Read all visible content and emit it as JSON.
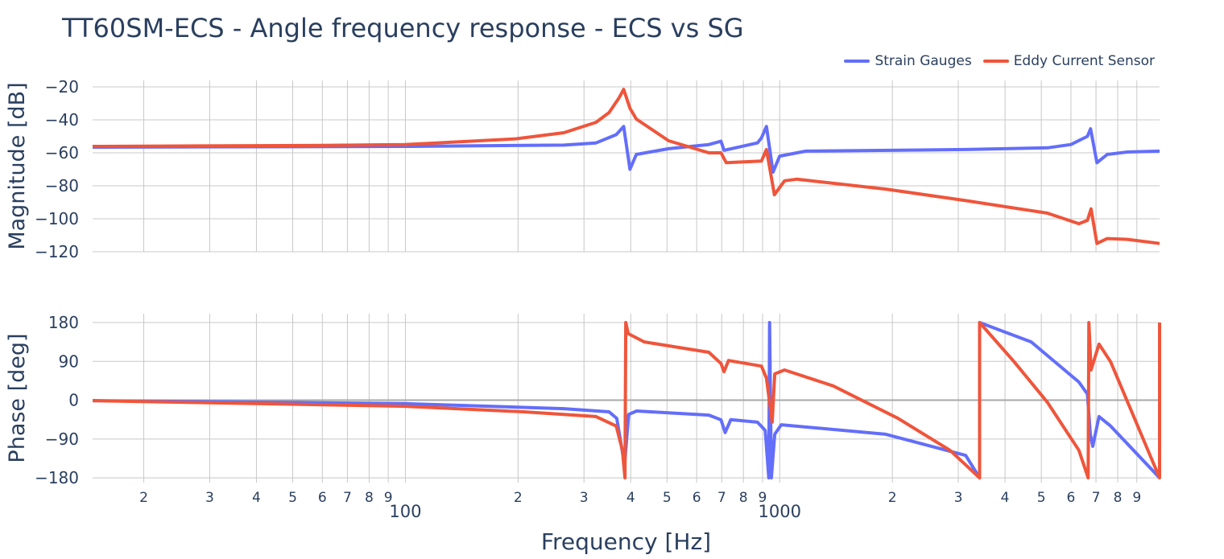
{
  "chart_data": [
    {
      "type": "line",
      "title": "TT60SM-ECS - Angle frequency response - ECS vs SG",
      "xlabel": "",
      "ylabel": "Magnitude [dB]",
      "xscale": "log",
      "xlim": [
        14.6,
        10350
      ],
      "ylim": [
        -120,
        -16.1
      ],
      "yticks": [
        -20,
        -40,
        -60,
        -80,
        -100,
        -120
      ],
      "ytick_labels": [
        "−20",
        "−40",
        "−60",
        "−80",
        "−100",
        "−120"
      ],
      "grid": true,
      "series": [
        {
          "name": "Strain Gauges",
          "color": "#636efa",
          "points": [
            [
              14.6,
              -56.6
            ],
            [
              100,
              -56.1
            ],
            [
              265,
              -55.3
            ],
            [
              323,
              -54
            ],
            [
              366,
              -49
            ],
            [
              383,
              -44
            ],
            [
              398,
              -70
            ],
            [
              414,
              -61
            ],
            [
              505,
              -57.5
            ],
            [
              647,
              -55
            ],
            [
              697,
              -53
            ],
            [
              710,
              -58.5
            ],
            [
              872,
              -54
            ],
            [
              894,
              -51
            ],
            [
              922,
              -44
            ],
            [
              960,
              -71.7
            ],
            [
              1000,
              -62
            ],
            [
              1175,
              -59
            ],
            [
              3140,
              -58
            ],
            [
              5190,
              -57
            ],
            [
              6000,
              -55
            ],
            [
              6640,
              -50
            ],
            [
              6770,
              -45.4
            ],
            [
              7040,
              -66
            ],
            [
              7500,
              -61
            ],
            [
              8500,
              -59.5
            ],
            [
              10350,
              -59
            ]
          ]
        },
        {
          "name": "Eddy Current Sensor",
          "color": "#ef553b",
          "points": [
            [
              14.6,
              -56.1
            ],
            [
              60,
              -55.5
            ],
            [
              100,
              -55
            ],
            [
              197,
              -51.5
            ],
            [
              265,
              -47.8
            ],
            [
              323,
              -41.5
            ],
            [
              350,
              -35.6
            ],
            [
              372,
              -26.8
            ],
            [
              383,
              -21.5
            ],
            [
              398,
              -33
            ],
            [
              414,
              -39.5
            ],
            [
              505,
              -52.7
            ],
            [
              647,
              -60
            ],
            [
              697,
              -60
            ],
            [
              720,
              -66
            ],
            [
              894,
              -65
            ],
            [
              922,
              -58
            ],
            [
              968,
              -85.4
            ],
            [
              1030,
              -77
            ],
            [
              1110,
              -76
            ],
            [
              1920,
              -82
            ],
            [
              3140,
              -89
            ],
            [
              5190,
              -96.6
            ],
            [
              6300,
              -103
            ],
            [
              6640,
              -101
            ],
            [
              6790,
              -94
            ],
            [
              7040,
              -115
            ],
            [
              7500,
              -112
            ],
            [
              8500,
              -112.5
            ],
            [
              10350,
              -115
            ]
          ]
        }
      ]
    },
    {
      "type": "line",
      "xlabel": "Frequency [Hz]",
      "ylabel": "Phase [deg]",
      "xscale": "log",
      "xlim": [
        14.6,
        10350
      ],
      "ylim": [
        -191,
        200.5
      ],
      "yticks": [
        180,
        90,
        0,
        -90,
        -180
      ],
      "ytick_labels": [
        "180",
        "90",
        "0",
        "−90",
        "−180"
      ],
      "xtick_minor_labels": [
        "2",
        "3",
        "4",
        "5",
        "6",
        "7",
        "8",
        "9",
        "2",
        "3",
        "4",
        "5",
        "6",
        "7",
        "8",
        "9",
        "2",
        "3",
        "4",
        "5",
        "6",
        "7",
        "8",
        "9"
      ],
      "xtick_minor_values": [
        20,
        30,
        40,
        50,
        60,
        70,
        80,
        90,
        200,
        300,
        400,
        500,
        600,
        700,
        800,
        900,
        2000,
        3000,
        4000,
        5000,
        6000,
        7000,
        8000,
        9000
      ],
      "xtick_major_labels": [
        "100",
        "1000"
      ],
      "xtick_major_values": [
        100,
        1000
      ],
      "grid": true,
      "series": [
        {
          "name": "Strain Gauges",
          "color": "#636efa",
          "points": [
            [
              14.6,
              -1
            ],
            [
              100,
              -8
            ],
            [
              265,
              -19.6
            ],
            [
              350,
              -27
            ],
            [
              367,
              -42
            ],
            [
              385,
              -150
            ],
            [
              395,
              -33
            ],
            [
              415,
              -25
            ],
            [
              647,
              -34.5
            ],
            [
              697,
              -45.6
            ],
            [
              715,
              -75
            ],
            [
              740,
              -45
            ],
            [
              872,
              -51
            ],
            [
              915,
              -70
            ],
            [
              935,
              -180
            ],
            [
              940,
              180
            ],
            [
              950,
              -180
            ],
            [
              970,
              -79
            ],
            [
              1010,
              -57
            ],
            [
              1920,
              -79
            ],
            [
              3140,
              -128
            ],
            [
              3420,
              -180
            ],
            [
              3420,
              180
            ],
            [
              4700,
              135
            ],
            [
              6300,
              42
            ],
            [
              6640,
              14
            ],
            [
              6760,
              -79
            ],
            [
              6860,
              -107
            ],
            [
              7130,
              -38
            ],
            [
              7660,
              -60
            ],
            [
              10350,
              -180
            ]
          ]
        },
        {
          "name": "Eddy Current Sensor",
          "color": "#ef553b",
          "points": [
            [
              14.6,
              -1
            ],
            [
              100,
              -14
            ],
            [
              207,
              -27
            ],
            [
              323,
              -38
            ],
            [
              366,
              -60
            ],
            [
              380,
              -116
            ],
            [
              386,
              -180
            ],
            [
              388,
              180
            ],
            [
              394,
              154
            ],
            [
              435,
              135
            ],
            [
              647,
              111
            ],
            [
              697,
              85
            ],
            [
              710,
              66
            ],
            [
              730,
              92
            ],
            [
              894,
              79
            ],
            [
              922,
              51
            ],
            [
              955,
              -51
            ],
            [
              970,
              61
            ],
            [
              1030,
              70
            ],
            [
              1390,
              33
            ],
            [
              2070,
              -42
            ],
            [
              2850,
              -116
            ],
            [
              3420,
              -180
            ],
            [
              3420,
              180
            ],
            [
              4230,
              89
            ],
            [
              5190,
              -5
            ],
            [
              6300,
              -116
            ],
            [
              6670,
              -180
            ],
            [
              6700,
              180
            ],
            [
              6790,
              70
            ],
            [
              7130,
              130
            ],
            [
              7660,
              89
            ],
            [
              10350,
              -180
            ],
            [
              10350,
              180
            ]
          ]
        }
      ]
    }
  ],
  "legend": {
    "placement": "top-right",
    "items": [
      "Strain Gauges",
      "Eddy Current Sensor"
    ]
  }
}
